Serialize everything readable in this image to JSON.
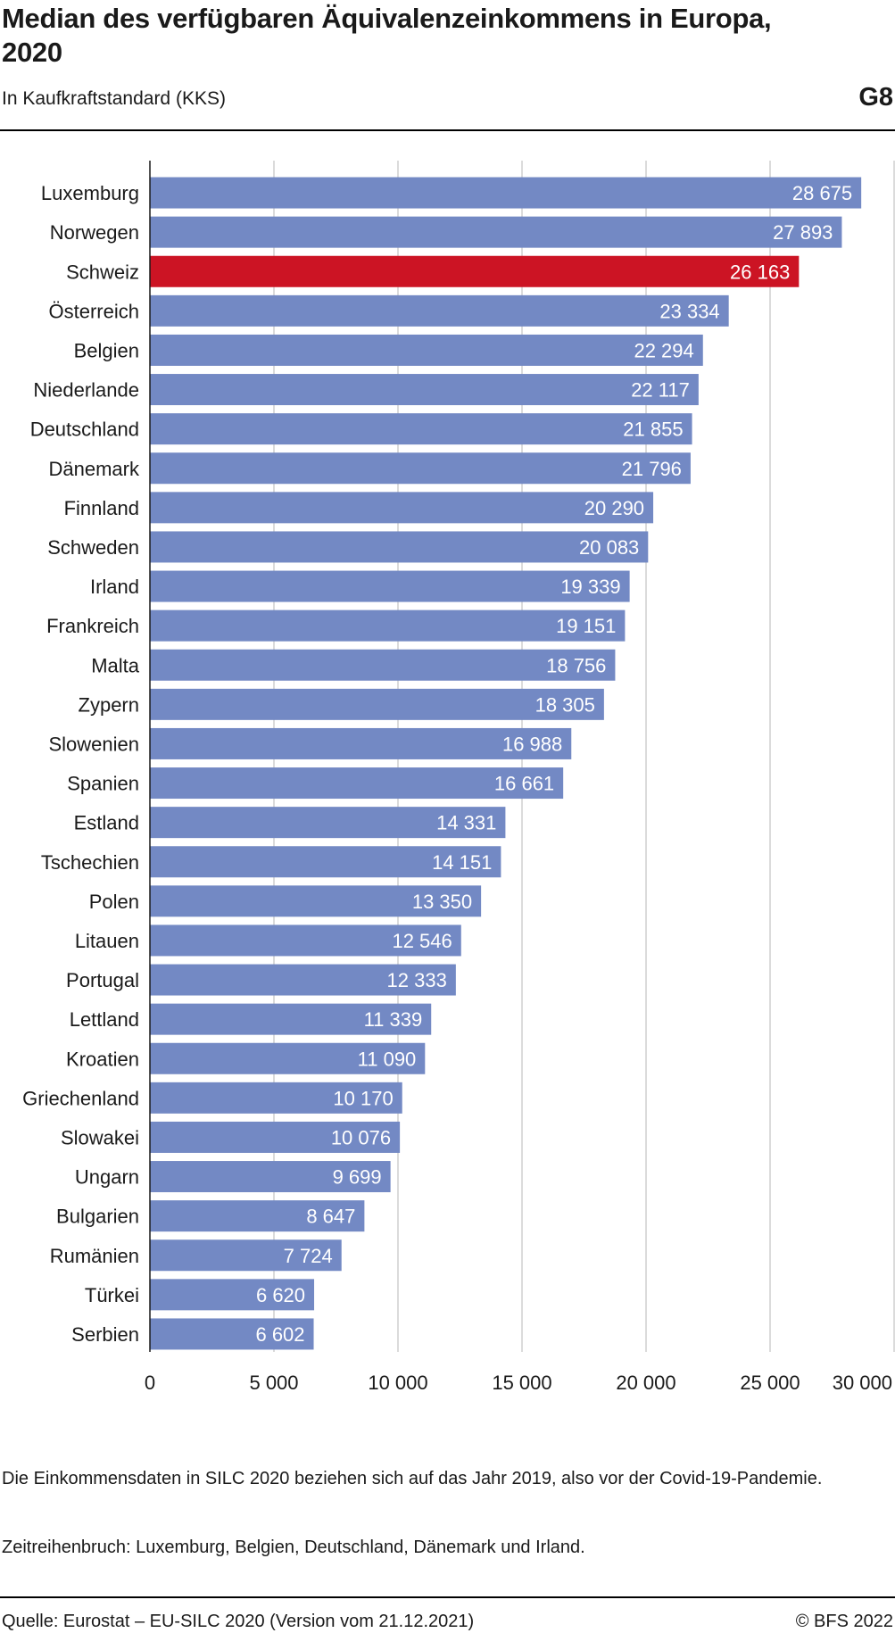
{
  "header": {
    "title": "Median des verfügbaren Äquivalenzeinkommens in Europa, 2020",
    "subtitle": "In Kaufkraftstandard (KKS)",
    "figure_number": "G8"
  },
  "notes": {
    "note1": "Die Einkommensdaten in SILC 2020 beziehen sich auf das Jahr 2019, also vor der Covid-19-Pandemie.",
    "note2": "Zeitreihenbruch: Luxemburg, Belgien, Deutschland, Dänemark und Irland."
  },
  "footer": {
    "source": "Quelle: Eurostat – EU-SILC 2020 (Version vom 21.12.2021)",
    "copyright": "© BFS 2022"
  },
  "colors": {
    "bar": "#7389c4",
    "highlight": "#cc1424",
    "grid": "#cfcfcf",
    "axis": "#1a1a1a",
    "bar_label": "#ffffff"
  },
  "chart_data": {
    "type": "bar",
    "orientation": "horizontal",
    "categories": [
      "Luxemburg",
      "Norwegen",
      "Schweiz",
      "Österreich",
      "Belgien",
      "Niederlande",
      "Deutschland",
      "Dänemark",
      "Finnland",
      "Schweden",
      "Irland",
      "Frankreich",
      "Malta",
      "Zypern",
      "Slowenien",
      "Spanien",
      "Estland",
      "Tschechien",
      "Polen",
      "Litauen",
      "Portugal",
      "Lettland",
      "Kroatien",
      "Griechenland",
      "Slowakei",
      "Ungarn",
      "Bulgarien",
      "Rumänien",
      "Türkei",
      "Serbien"
    ],
    "values": [
      28675,
      27893,
      26163,
      23334,
      22294,
      22117,
      21855,
      21796,
      20290,
      20083,
      19339,
      19151,
      18756,
      18305,
      16988,
      16661,
      14331,
      14151,
      13350,
      12546,
      12333,
      11339,
      11090,
      10170,
      10076,
      9699,
      8647,
      7724,
      6620,
      6602
    ],
    "value_labels": [
      "28 675",
      "27 893",
      "26 163",
      "23 334",
      "22 294",
      "22 117",
      "21 855",
      "21 796",
      "20 290",
      "20 083",
      "19 339",
      "19 151",
      "18 756",
      "18 305",
      "16 988",
      "16 661",
      "14 331",
      "14 151",
      "13 350",
      "12 546",
      "12 333",
      "11 339",
      "11 090",
      "10 170",
      "10 076",
      "9 699",
      "8 647",
      "7 724",
      "6 620",
      "6 602"
    ],
    "highlight": "Schweiz",
    "xlim": [
      0,
      30000
    ],
    "xticks": [
      0,
      5000,
      10000,
      15000,
      20000,
      25000,
      30000
    ],
    "xtick_labels": [
      "0",
      "5 000",
      "10 000",
      "15 000",
      "20 000",
      "25 000",
      "30 000"
    ],
    "grid": true
  }
}
